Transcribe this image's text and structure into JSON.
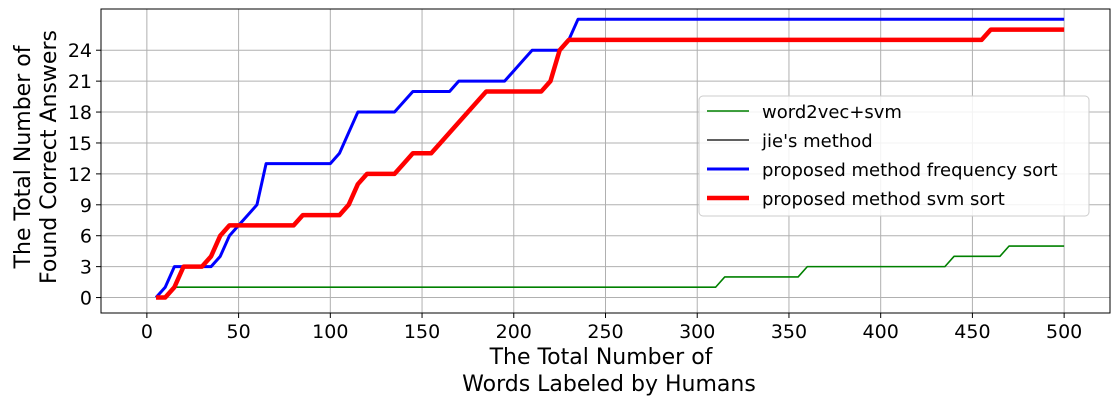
{
  "chart_data": {
    "type": "line",
    "xlabel": [
      "The Total Number of",
      "Words Labeled by Humans"
    ],
    "ylabel": [
      "The Total Number of",
      "Found Correct Answers"
    ],
    "xlim": [
      -25,
      525
    ],
    "ylim": [
      -1.5,
      28
    ],
    "xticks": [
      0,
      50,
      100,
      150,
      200,
      250,
      300,
      350,
      400,
      450,
      500
    ],
    "yticks": [
      0,
      3,
      6,
      9,
      12,
      15,
      18,
      21,
      24
    ],
    "grid": true,
    "legend_position": "center-right",
    "series": [
      {
        "name": "word2vec+svm",
        "color": "#008000",
        "width": 1.6,
        "x": [
          5,
          10,
          15,
          310,
          315,
          355,
          360,
          435,
          440,
          465,
          470,
          500
        ],
        "y": [
          0,
          0,
          1,
          1,
          2,
          2,
          3,
          3,
          4,
          4,
          5,
          5
        ]
      },
      {
        "name": "jie's method",
        "color": "#000000",
        "width": 1.2,
        "x": [],
        "y": []
      },
      {
        "name": "proposed method frequency sort",
        "color": "#0000ff",
        "width": 3,
        "x": [
          5,
          10,
          15,
          20,
          25,
          30,
          35,
          40,
          45,
          50,
          55,
          60,
          65,
          70,
          100,
          105,
          110,
          115,
          120,
          135,
          140,
          145,
          150,
          165,
          170,
          175,
          195,
          200,
          205,
          210,
          215,
          225,
          230,
          235,
          500
        ],
        "y": [
          0,
          1,
          3,
          3,
          3,
          3,
          3,
          4,
          6,
          7,
          8,
          9,
          13,
          13,
          13,
          14,
          16,
          18,
          18,
          18,
          19,
          20,
          20,
          20,
          21,
          21,
          21,
          22,
          23,
          24,
          24,
          24,
          25,
          27,
          27
        ]
      },
      {
        "name": "proposed method svm sort",
        "color": "#ff0000",
        "width": 4.5,
        "x": [
          5,
          10,
          15,
          20,
          25,
          30,
          35,
          40,
          45,
          50,
          80,
          85,
          90,
          100,
          105,
          110,
          115,
          120,
          125,
          135,
          140,
          145,
          155,
          160,
          185,
          190,
          215,
          220,
          225,
          230,
          455,
          460,
          500
        ],
        "y": [
          0,
          0,
          1,
          3,
          3,
          3,
          4,
          6,
          7,
          7,
          7,
          8,
          8,
          8,
          8,
          9,
          11,
          12,
          12,
          12,
          13,
          14,
          14,
          15,
          20,
          20,
          20,
          21,
          24,
          25,
          25,
          26,
          26
        ]
      }
    ]
  }
}
